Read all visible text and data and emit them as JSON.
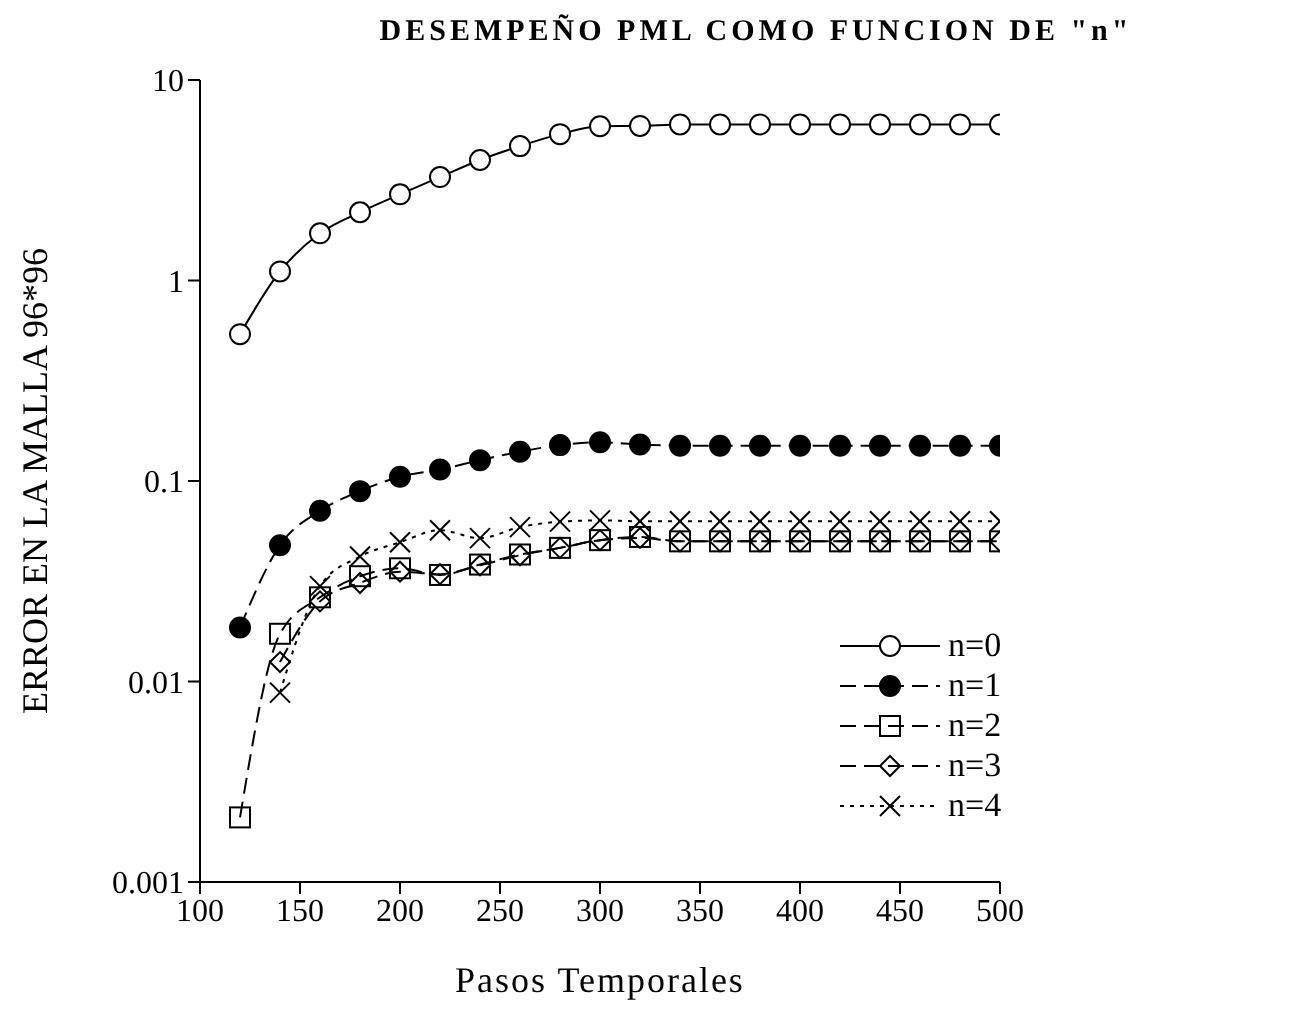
{
  "chart_data": {
    "type": "line",
    "title": "DESEMPEÑO PML COMO FUNCION DE \"n\"",
    "xlabel": "Pasos Temporales",
    "ylabel": "ERROR EN LA MALLA 96*96",
    "x": [
      120,
      140,
      160,
      180,
      200,
      220,
      240,
      260,
      280,
      300,
      320,
      340,
      360,
      380,
      400,
      420,
      440,
      460,
      480,
      500
    ],
    "xlim": [
      100,
      500
    ],
    "xticks": [
      100,
      150,
      200,
      250,
      300,
      350,
      400,
      450,
      500
    ],
    "ylim": [
      0.001,
      10
    ],
    "yticks": [
      0.001,
      0.01,
      0.1,
      1,
      10
    ],
    "log": "y",
    "legend": "bottom right",
    "series": [
      {
        "name": "n=0",
        "color": "#000000",
        "marker": "circle",
        "line_style": "solid",
        "values": [
          0.54,
          1.11,
          1.72,
          2.19,
          2.69,
          3.28,
          3.99,
          4.68,
          5.37,
          5.88,
          5.9,
          6.0,
          6.0,
          6.0,
          6.0,
          6.0,
          6.0,
          6.0,
          6.0,
          6.0
        ]
      },
      {
        "name": "n=1",
        "color": "#000000",
        "marker": "circle_filled",
        "line_style": "dashed",
        "values": [
          0.0186,
          0.0478,
          0.071,
          0.089,
          0.105,
          0.114,
          0.127,
          0.14,
          0.151,
          0.156,
          0.152,
          0.15,
          0.15,
          0.15,
          0.15,
          0.15,
          0.15,
          0.15,
          0.15,
          0.15
        ]
      },
      {
        "name": "n=2",
        "color": "#000000",
        "marker": "square",
        "line_style": "dashed",
        "values": [
          0.0021,
          0.0173,
          0.0263,
          0.0335,
          0.0367,
          0.034,
          0.0383,
          0.043,
          0.0464,
          0.0507,
          0.0526,
          0.05,
          0.05,
          0.05,
          0.05,
          0.05,
          0.05,
          0.05,
          0.05,
          0.05
        ]
      },
      {
        "name": "n=3",
        "color": "#000000",
        "marker": "diamond",
        "line_style": "dashed",
        "values": [
          null,
          0.0125,
          0.0251,
          0.031,
          0.0353,
          0.0343,
          0.038,
          0.0426,
          0.0464,
          0.0507,
          0.052,
          0.05,
          0.05,
          0.05,
          0.05,
          0.05,
          0.05,
          0.05,
          0.05,
          0.05
        ]
      },
      {
        "name": "n=4",
        "color": "#000000",
        "marker": "cross",
        "line_style": "dotted",
        "values": [
          null,
          0.0088,
          0.0299,
          0.042,
          0.0495,
          0.0568,
          0.0519,
          0.0589,
          0.0627,
          0.0636,
          0.063,
          0.063,
          0.063,
          0.063,
          0.063,
          0.063,
          0.063,
          0.063,
          0.063,
          0.063
        ]
      }
    ]
  }
}
